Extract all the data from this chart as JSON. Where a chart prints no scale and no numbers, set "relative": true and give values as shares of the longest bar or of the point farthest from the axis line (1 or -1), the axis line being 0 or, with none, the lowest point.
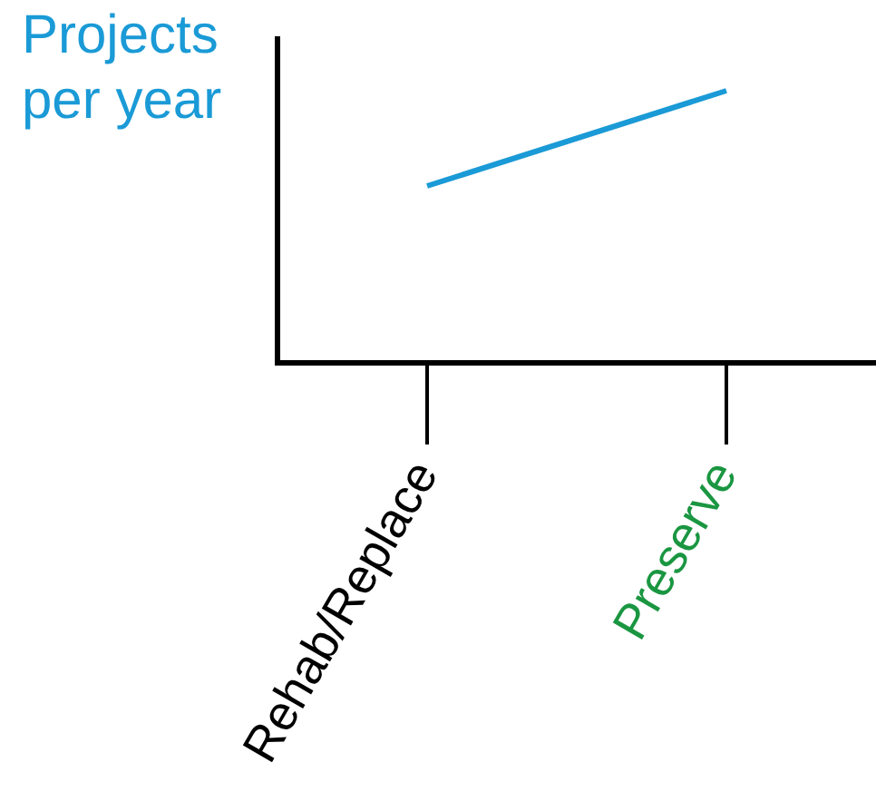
{
  "chart_data": {
    "type": "line",
    "ylabel": "Projects per year",
    "categories": [
      "Rehab/Replace",
      "Preserve"
    ],
    "series": [
      {
        "color": "#1a9ad6",
        "values": [
          0.65,
          1
        ]
      }
    ],
    "relative": true,
    "marker": "none",
    "grid": false,
    "legend": false
  }
}
